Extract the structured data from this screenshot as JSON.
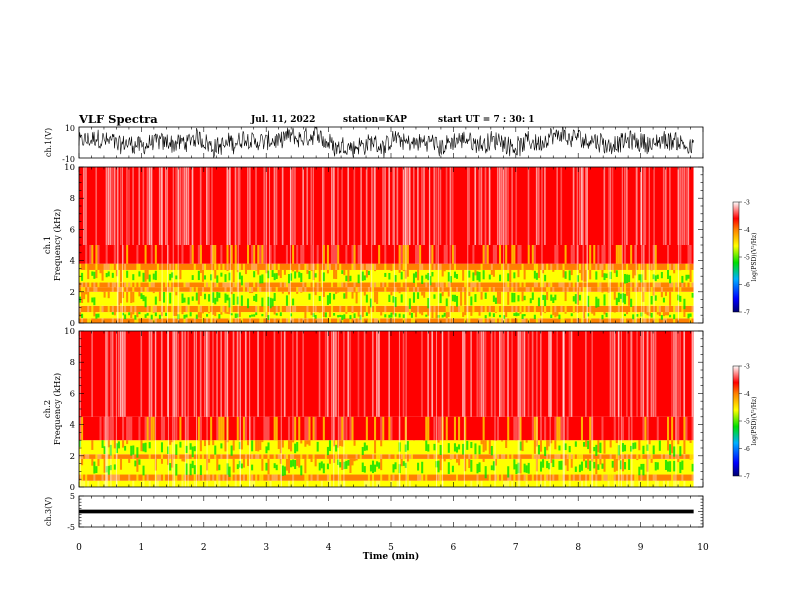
{
  "header": {
    "title": "VLF Spectra",
    "date": "Jul. 11, 2022",
    "station": "station=KAP",
    "start": "start UT = 7 : 30: 1"
  },
  "chart_data": [
    {
      "type": "line",
      "panel": "ch1-waveform",
      "ylabel": "ch.1(V)",
      "ylim": [
        -10,
        10
      ],
      "yticks": [
        "10",
        "-10"
      ],
      "xlim": [
        0,
        10
      ],
      "description_of_series": "noisy voltage trace",
      "trace_range": [
        -10,
        10
      ],
      "color": "#000000"
    },
    {
      "type": "heatmap",
      "panel": "ch1-spectrogram",
      "ylabel": "ch.1\nFrequency (kHz)",
      "ylabel_line1": "ch.1",
      "ylabel_line2": "Frequency (kHz)",
      "ylim": [
        0,
        10
      ],
      "yticks": [
        "0",
        "2",
        "4",
        "6",
        "8",
        "10"
      ],
      "xlim": [
        0,
        9.85
      ],
      "bands": [
        {
          "f0": 0.0,
          "f1": 0.3,
          "level": -4.4
        },
        {
          "f0": 0.3,
          "f1": 0.7,
          "level": -4.9
        },
        {
          "f0": 0.7,
          "f1": 1.1,
          "level": -4.3
        },
        {
          "f0": 1.1,
          "f1": 2.0,
          "level": -4.75
        },
        {
          "f0": 2.0,
          "f1": 2.3,
          "level": -4.3
        },
        {
          "f0": 2.3,
          "f1": 2.6,
          "level": -3.9
        },
        {
          "f0": 2.6,
          "f1": 3.4,
          "level": -4.8
        },
        {
          "f0": 3.4,
          "f1": 3.8,
          "level": -4.15
        },
        {
          "f0": 3.8,
          "f1": 5.0,
          "level": -3.85
        },
        {
          "f0": 5.0,
          "f1": 10.0,
          "level": -3.45
        }
      ],
      "colorbar": {
        "label": "log(PSD)(V²/Hz)",
        "range": [
          -7,
          -3
        ],
        "ticks": [
          "-3",
          "-4",
          "-5",
          "-6",
          "-7"
        ]
      }
    },
    {
      "type": "heatmap",
      "panel": "ch2-spectrogram",
      "ylabel": "ch.2\nFrequency (kHz)",
      "ylabel_line1": "ch.2",
      "ylabel_line2": "Frequency (kHz)",
      "ylim": [
        0,
        10
      ],
      "yticks": [
        "0",
        "2",
        "4",
        "6",
        "8",
        "10"
      ],
      "xlim": [
        0,
        9.85
      ],
      "bands": [
        {
          "f0": 0.0,
          "f1": 0.4,
          "level": -4.5
        },
        {
          "f0": 0.4,
          "f1": 0.8,
          "level": -4.3
        },
        {
          "f0": 0.8,
          "f1": 1.8,
          "level": -4.8
        },
        {
          "f0": 1.8,
          "f1": 2.1,
          "level": -4.2
        },
        {
          "f0": 2.1,
          "f1": 3.0,
          "level": -4.85
        },
        {
          "f0": 3.0,
          "f1": 4.5,
          "level": -3.85
        },
        {
          "f0": 4.5,
          "f1": 10.0,
          "level": -3.45
        }
      ],
      "colorbar": {
        "label": "log(PSD)(V²/Hz)",
        "range": [
          -7,
          -3
        ],
        "ticks": [
          "-3",
          "-4",
          "-5",
          "-6",
          "-7"
        ]
      }
    },
    {
      "type": "line",
      "panel": "ch3-waveform",
      "ylabel": "ch.3(V)",
      "ylim": [
        -5,
        5
      ],
      "yticks": [
        "5",
        "0",
        "-5"
      ],
      "xlim": [
        0,
        10
      ],
      "trace_center": 0,
      "trace_range": [
        -0.6,
        0.6
      ],
      "color": "#000000"
    }
  ],
  "xaxis": {
    "label": "Time (min)",
    "ticks": [
      "0",
      "1",
      "2",
      "3",
      "4",
      "5",
      "6",
      "7",
      "8",
      "9",
      "10"
    ],
    "xlim": [
      0,
      10
    ]
  },
  "colorscale": [
    "#000080",
    "#0000ff",
    "#00a0ff",
    "#00e000",
    "#ffff00",
    "#ff8000",
    "#ff0000",
    "#ffffff"
  ]
}
